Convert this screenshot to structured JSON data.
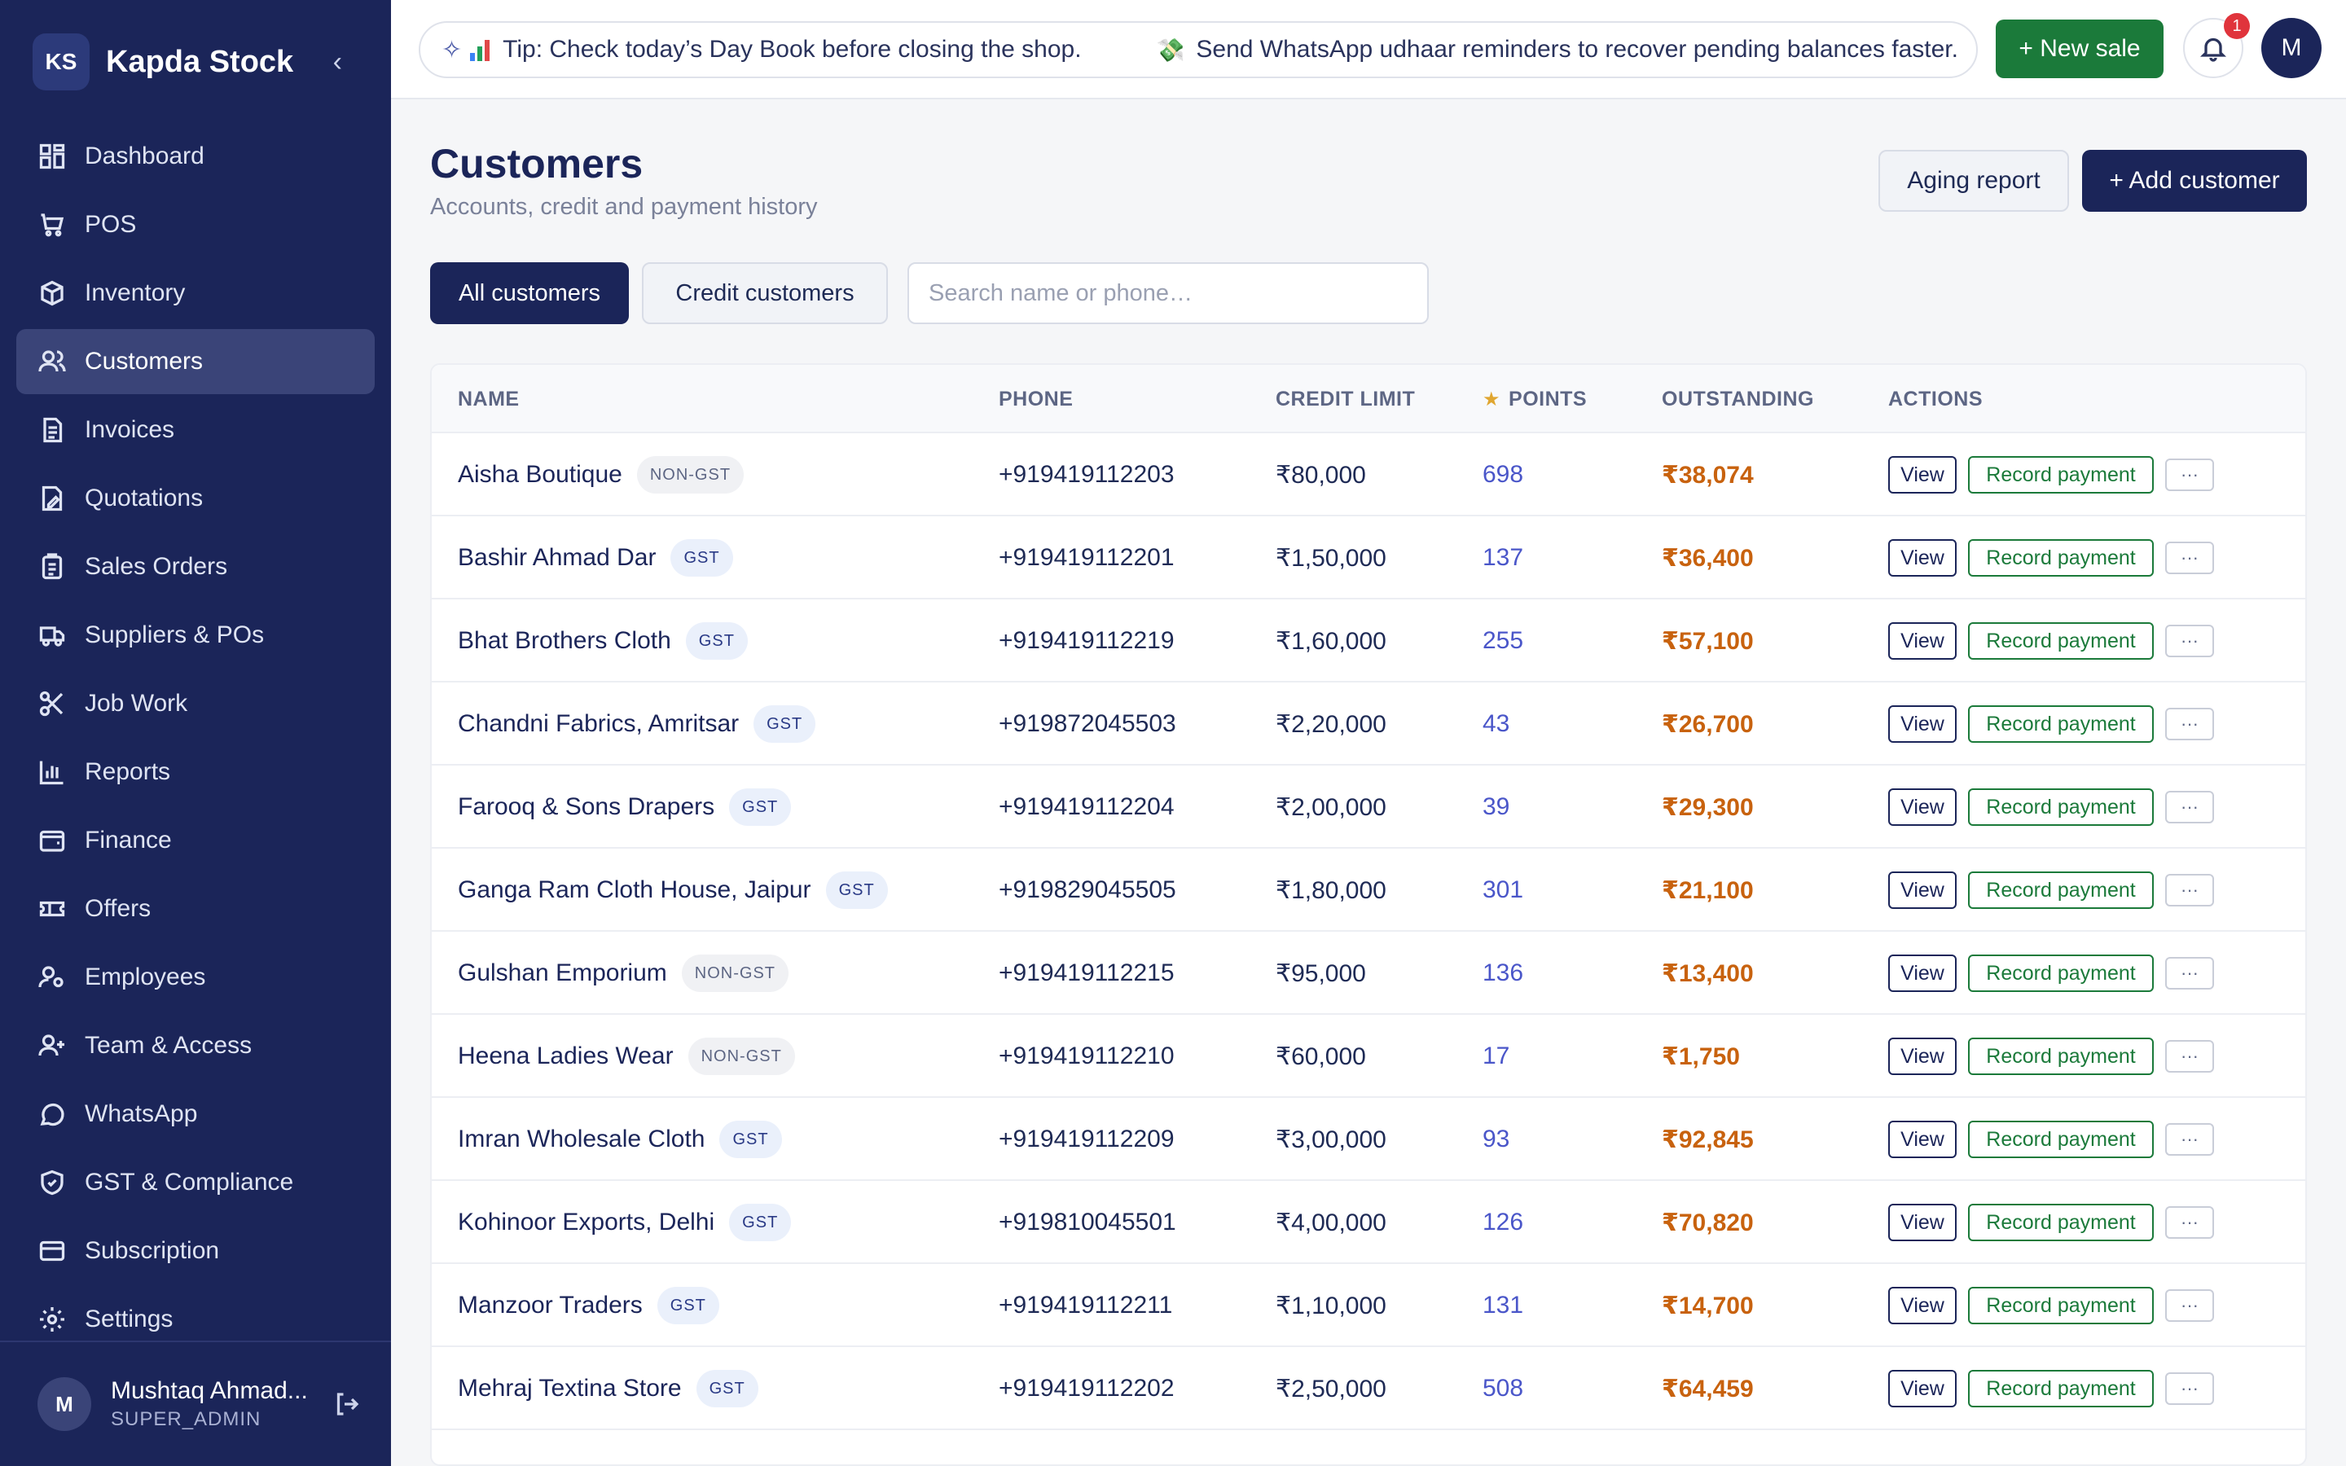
{
  "brand": {
    "initials": "KS",
    "name": "Kapda Stock"
  },
  "sidebar": {
    "items": [
      {
        "label": "Dashboard",
        "icon": "dashboard-icon"
      },
      {
        "label": "POS",
        "icon": "cart-icon"
      },
      {
        "label": "Inventory",
        "icon": "box-icon"
      },
      {
        "label": "Customers",
        "icon": "users-icon",
        "active": true
      },
      {
        "label": "Invoices",
        "icon": "invoice-icon"
      },
      {
        "label": "Quotations",
        "icon": "quotation-icon"
      },
      {
        "label": "Sales Orders",
        "icon": "clipboard-icon"
      },
      {
        "label": "Suppliers & POs",
        "icon": "truck-icon"
      },
      {
        "label": "Job Work",
        "icon": "scissors-icon"
      },
      {
        "label": "Reports",
        "icon": "bar-chart-icon"
      },
      {
        "label": "Finance",
        "icon": "wallet-icon"
      },
      {
        "label": "Offers",
        "icon": "ticket-icon"
      },
      {
        "label": "Employees",
        "icon": "employee-icon"
      },
      {
        "label": "Team & Access",
        "icon": "user-plus-icon"
      },
      {
        "label": "WhatsApp",
        "icon": "chat-icon"
      },
      {
        "label": "GST & Compliance",
        "icon": "shield-icon"
      },
      {
        "label": "Subscription",
        "icon": "card-icon"
      },
      {
        "label": "Settings",
        "icon": "gear-icon"
      }
    ]
  },
  "user": {
    "initial": "M",
    "name": "Mushtaq Ahmad...",
    "role": "SUPER_ADMIN"
  },
  "topbar": {
    "tip1": "Tip: Check today’s Day Book before closing the shop.",
    "tip2": "Send WhatsApp udhaar reminders to recover pending balances faster.",
    "new_sale": "+ New sale",
    "notif_count": "1",
    "avatar": "M"
  },
  "page": {
    "title": "Customers",
    "subtitle": "Accounts, credit and payment history",
    "aging_btn": "Aging report",
    "add_btn": "+ Add customer",
    "filter_all": "All customers",
    "filter_credit": "Credit customers",
    "search_placeholder": "Search name or phone…"
  },
  "table": {
    "headers": {
      "name": "NAME",
      "phone": "PHONE",
      "credit": "CREDIT LIMIT",
      "points": "POINTS",
      "outstanding": "OUTSTANDING",
      "actions": "ACTIONS"
    },
    "action_labels": {
      "view": "View",
      "pay": "Record payment",
      "more": "···"
    },
    "rows": [
      {
        "name": "Aisha Boutique",
        "tag": "NON-GST",
        "phone": "+919419112203",
        "credit": "₹80,000",
        "points": "698",
        "outstanding": "₹38,074"
      },
      {
        "name": "Bashir Ahmad Dar",
        "tag": "GST",
        "phone": "+919419112201",
        "credit": "₹1,50,000",
        "points": "137",
        "outstanding": "₹36,400"
      },
      {
        "name": "Bhat Brothers Cloth",
        "tag": "GST",
        "phone": "+919419112219",
        "credit": "₹1,60,000",
        "points": "255",
        "outstanding": "₹57,100"
      },
      {
        "name": "Chandni Fabrics, Amritsar",
        "tag": "GST",
        "phone": "+919872045503",
        "credit": "₹2,20,000",
        "points": "43",
        "outstanding": "₹26,700"
      },
      {
        "name": "Farooq & Sons Drapers",
        "tag": "GST",
        "phone": "+919419112204",
        "credit": "₹2,00,000",
        "points": "39",
        "outstanding": "₹29,300"
      },
      {
        "name": "Ganga Ram Cloth House, Jaipur",
        "tag": "GST",
        "phone": "+919829045505",
        "credit": "₹1,80,000",
        "points": "301",
        "outstanding": "₹21,100"
      },
      {
        "name": "Gulshan Emporium",
        "tag": "NON-GST",
        "phone": "+919419112215",
        "credit": "₹95,000",
        "points": "136",
        "outstanding": "₹13,400"
      },
      {
        "name": "Heena Ladies Wear",
        "tag": "NON-GST",
        "phone": "+919419112210",
        "credit": "₹60,000",
        "points": "17",
        "outstanding": "₹1,750"
      },
      {
        "name": "Imran Wholesale Cloth",
        "tag": "GST",
        "phone": "+919419112209",
        "credit": "₹3,00,000",
        "points": "93",
        "outstanding": "₹92,845"
      },
      {
        "name": "Kohinoor Exports, Delhi",
        "tag": "GST",
        "phone": "+919810045501",
        "credit": "₹4,00,000",
        "points": "126",
        "outstanding": "₹70,820"
      },
      {
        "name": "Manzoor Traders",
        "tag": "GST",
        "phone": "+919419112211",
        "credit": "₹1,10,000",
        "points": "131",
        "outstanding": "₹14,700"
      },
      {
        "name": "Mehraj Textina Store",
        "tag": "GST",
        "phone": "+919419112202",
        "credit": "₹2,50,000",
        "points": "508",
        "outstanding": "₹64,459"
      }
    ]
  },
  "colors": {
    "sidebar_bg": "#1b2559",
    "primary": "#1b2559",
    "success": "#1b7a3a",
    "outstanding": "#c8620e",
    "points": "#4a56c9"
  }
}
